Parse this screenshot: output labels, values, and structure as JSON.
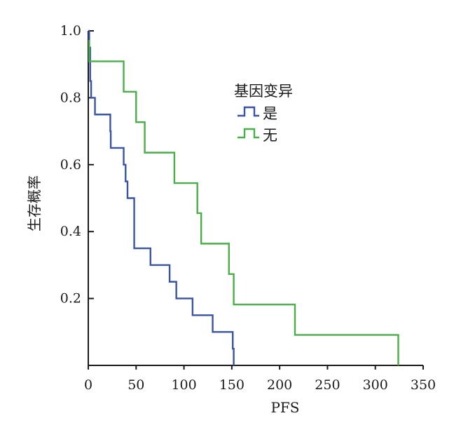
{
  "chart_data": {
    "type": "line",
    "xlabel": "PFS",
    "ylabel": "生存概率",
    "xlim": [
      0,
      350
    ],
    "ylim": [
      0,
      1.0
    ],
    "x_ticks": [
      "0",
      "50",
      "100",
      "150",
      "200",
      "250",
      "300",
      "350"
    ],
    "y_ticks": [
      "0.2",
      "0.4",
      "0.6",
      "0.8",
      "1.0"
    ],
    "grid": false,
    "legend": {
      "title": "基因变异",
      "placement": "upper-right",
      "entries": [
        "是",
        "无"
      ]
    },
    "series": [
      {
        "name": "是",
        "color": "#3a54a4",
        "step": "post",
        "x": [
          0,
          1,
          2,
          3,
          7,
          23,
          23.5,
          25,
          37,
          39,
          41,
          44,
          48,
          65,
          85,
          92,
          109,
          130,
          151,
          152
        ],
        "y": [
          1.0,
          0.95,
          0.85,
          0.8,
          0.75,
          0.7,
          0.65,
          0.65,
          0.6,
          0.55,
          0.5,
          0.5,
          0.35,
          0.3,
          0.25,
          0.2,
          0.15,
          0.1,
          0.05,
          0.0
        ]
      },
      {
        "name": "无",
        "color": "#4aae4a",
        "step": "post",
        "x": [
          0,
          1,
          37,
          50,
          59,
          90,
          114,
          118,
          147,
          152,
          216,
          324
        ],
        "y": [
          0.97,
          0.909,
          0.818,
          0.727,
          0.636,
          0.545,
          0.455,
          0.364,
          0.273,
          0.182,
          0.091,
          0.0
        ]
      }
    ]
  }
}
